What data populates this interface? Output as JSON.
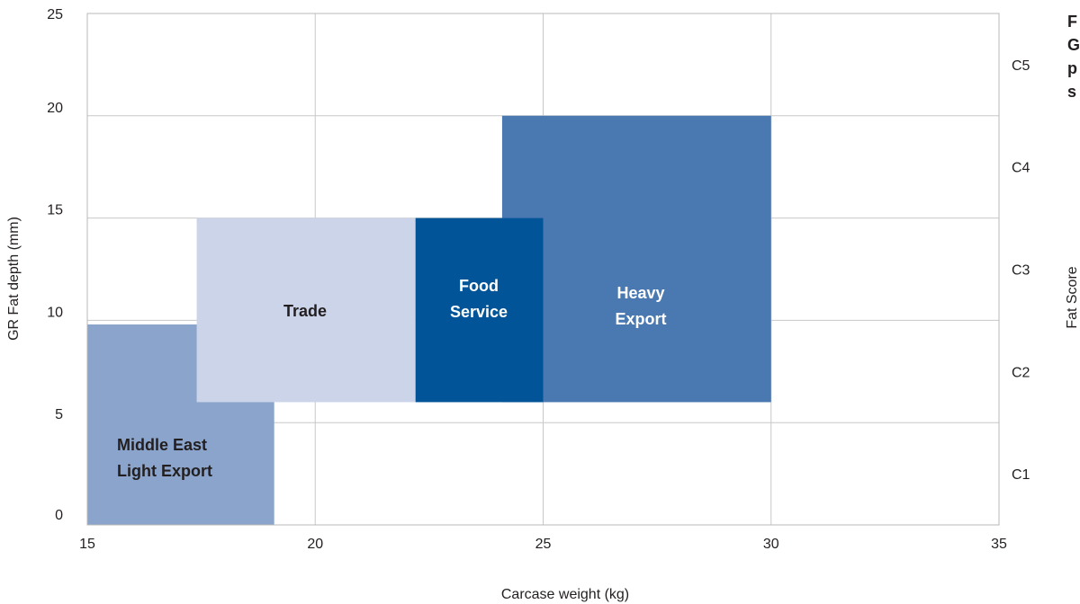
{
  "chart_data": {
    "type": "range-boxes",
    "xlabel": "Carcase weight (kg)",
    "ylabel": "GR Fat depth (mm)",
    "y2label": "Fat Score",
    "xlim": [
      15,
      35
    ],
    "ylim": [
      0,
      25
    ],
    "x_ticks": [
      15,
      20,
      25,
      30,
      35
    ],
    "y_ticks": [
      0,
      5,
      10,
      15,
      20,
      25
    ],
    "fat_scores": [
      {
        "label": "C1",
        "y_from": 0,
        "y_to": 5
      },
      {
        "label": "C2",
        "y_from": 5,
        "y_to": 10
      },
      {
        "label": "C3",
        "y_from": 10,
        "y_to": 15
      },
      {
        "label": "C4",
        "y_from": 15,
        "y_to": 20
      },
      {
        "label": "C5",
        "y_from": 20,
        "y_to": 25
      }
    ],
    "grid": true,
    "regions": [
      {
        "name": "Middle East Light Export",
        "lines": [
          "Middle East",
          "Light Export"
        ],
        "x": [
          15,
          19.1
        ],
        "y": [
          0,
          9.8
        ],
        "color": "#8aa4cc",
        "text_color": "#231f20"
      },
      {
        "name": "Heavy Export",
        "lines": [
          "Heavy",
          "Export"
        ],
        "x": [
          24.1,
          30
        ],
        "y": [
          6,
          20
        ],
        "color": "#4a78b0",
        "text_color": "#ffffff"
      },
      {
        "name": "Trade",
        "lines": [
          "Trade"
        ],
        "x": [
          17.4,
          22.2
        ],
        "y": [
          6,
          15
        ],
        "color": "#cbd4e8",
        "text_color": "#231f20"
      },
      {
        "name": "Food Service",
        "lines": [
          "Food",
          "Service"
        ],
        "x": [
          22.2,
          25
        ],
        "y": [
          6,
          15
        ],
        "color": "#005497",
        "text_color": "#ffffff"
      }
    ]
  },
  "side_caption": {
    "lines": [
      "F",
      "G",
      "p",
      "s"
    ]
  }
}
